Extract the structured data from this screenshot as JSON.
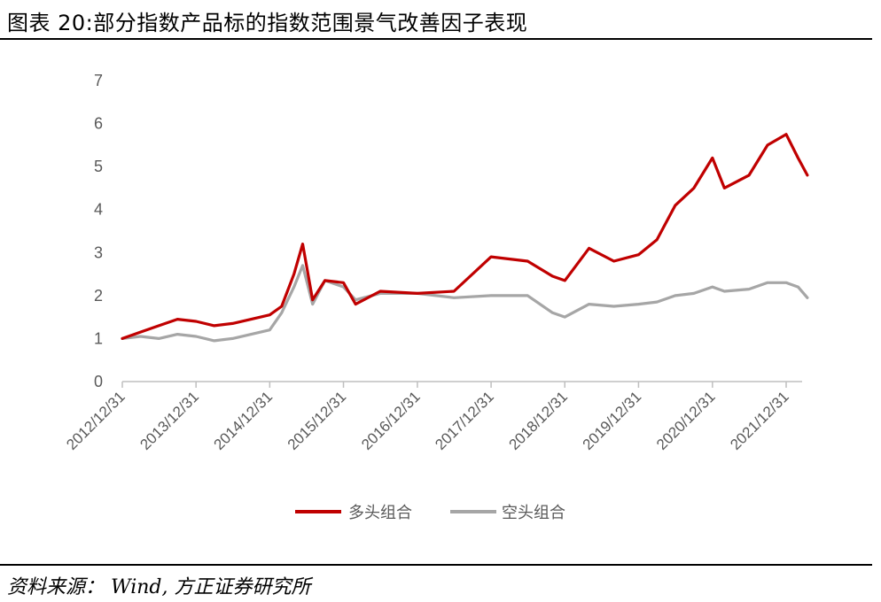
{
  "title": "图表 20:部分指数产品标的指数范围景气改善因子表现",
  "source": "资料来源： Wind,  方正证券研究所",
  "colors": {
    "long": "#c00000",
    "short": "#a6a6a6",
    "axis": "#bfbfbf"
  },
  "chart_data": {
    "type": "line",
    "title": "",
    "xlabel": "",
    "ylabel": "",
    "ylim": [
      0,
      7
    ],
    "y_ticks": [
      "0",
      "1",
      "2",
      "3",
      "4",
      "5",
      "6",
      "7"
    ],
    "x_ticks": [
      "2012/12/31",
      "2013/12/31",
      "2014/12/31",
      "2015/12/31",
      "2016/12/31",
      "2017/12/31",
      "2018/12/31",
      "2019/12/31",
      "2020/12/31",
      "2021/12/31"
    ],
    "grid": false,
    "legend": "bottom",
    "x": [
      "2012/12/31",
      "2013/03/31",
      "2013/06/30",
      "2013/09/30",
      "2013/12/31",
      "2014/03/31",
      "2014/06/30",
      "2014/09/30",
      "2014/12/31",
      "2015/02/28",
      "2015/04/30",
      "2015/06/12",
      "2015/07/31",
      "2015/09/30",
      "2015/12/31",
      "2016/02/29",
      "2016/06/30",
      "2016/12/31",
      "2017/06/30",
      "2017/12/31",
      "2018/06/30",
      "2018/10/31",
      "2018/12/31",
      "2019/04/30",
      "2019/08/31",
      "2019/12/31",
      "2020/03/31",
      "2020/06/30",
      "2020/09/30",
      "2020/12/31",
      "2021/02/28",
      "2021/06/30",
      "2021/09/30",
      "2021/12/31",
      "2022/02/28",
      "2022/04/15"
    ],
    "series": [
      {
        "name": "多头组合",
        "values": [
          1.0,
          1.15,
          1.3,
          1.45,
          1.4,
          1.3,
          1.35,
          1.45,
          1.55,
          1.75,
          2.5,
          3.2,
          1.9,
          2.35,
          2.3,
          1.8,
          2.1,
          2.05,
          2.1,
          2.9,
          2.8,
          2.45,
          2.35,
          3.1,
          2.8,
          2.95,
          3.3,
          4.1,
          4.5,
          5.2,
          4.5,
          4.8,
          5.5,
          5.75,
          5.2,
          4.8
        ]
      },
      {
        "name": "空头组合",
        "values": [
          1.0,
          1.05,
          1.0,
          1.1,
          1.05,
          0.95,
          1.0,
          1.1,
          1.2,
          1.6,
          2.2,
          2.7,
          1.8,
          2.35,
          2.2,
          1.9,
          2.05,
          2.05,
          1.95,
          2.0,
          2.0,
          1.6,
          1.5,
          1.8,
          1.75,
          1.8,
          1.85,
          2.0,
          2.05,
          2.2,
          2.1,
          2.15,
          2.3,
          2.3,
          2.2,
          1.95
        ]
      }
    ]
  }
}
